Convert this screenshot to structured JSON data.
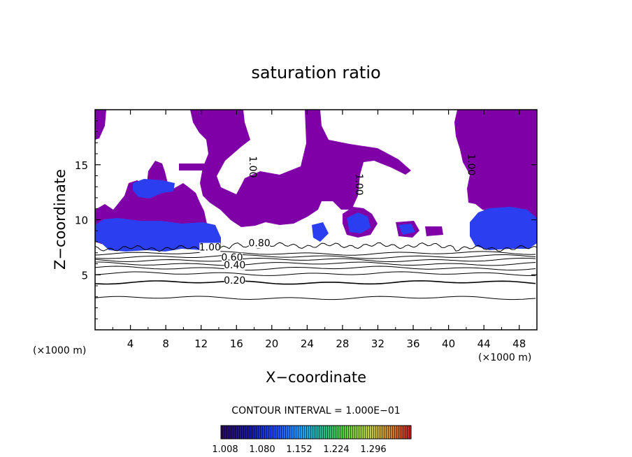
{
  "chart_data": {
    "type": "heatmap",
    "title": "saturation ratio",
    "xlabel": "X−coordinate",
    "ylabel": "Z−coordinate",
    "x_unit_left": "(×1000 m)",
    "x_unit_right": "(×1000 m)",
    "xlim": [
      0,
      50
    ],
    "ylim": [
      0,
      20
    ],
    "x_ticks": [
      4,
      8,
      12,
      16,
      20,
      24,
      28,
      32,
      36,
      40,
      44,
      48
    ],
    "y_ticks": [
      5,
      10,
      15
    ],
    "contour_interval_text": "CONTOUR INTERVAL = 1.000E−01",
    "contour_labels": [
      {
        "text": "1.00",
        "x": 17.5,
        "z": 14.8,
        "rotate": true
      },
      {
        "text": "1.00",
        "x": 29.5,
        "z": 13.2,
        "rotate": true
      },
      {
        "text": "1.00",
        "x": 42.2,
        "z": 15.0,
        "rotate": true
      },
      {
        "text": "1.00",
        "x": 13.0,
        "z": 7.2,
        "rotate": false
      },
      {
        "text": "0.80",
        "x": 18.6,
        "z": 7.6,
        "rotate": false
      },
      {
        "text": "0.60",
        "x": 15.5,
        "z": 6.3,
        "rotate": false
      },
      {
        "text": "0.40",
        "x": 15.8,
        "z": 5.6,
        "rotate": false
      },
      {
        "text": "0.20",
        "x": 15.8,
        "z": 4.2,
        "rotate": false
      }
    ],
    "contour_levels": [
      {
        "level": 0.2,
        "z": 4.3
      },
      {
        "level": 0.3,
        "z": 5.1
      },
      {
        "level": 0.4,
        "z": 5.6
      },
      {
        "level": 0.5,
        "z": 6.0
      },
      {
        "level": 0.6,
        "z": 6.35
      },
      {
        "level": 0.7,
        "z": 6.65
      },
      {
        "level": 0.8,
        "z": 6.95
      },
      {
        "level": 0.1,
        "z": 2.9
      }
    ],
    "colorbar": {
      "ticks": [
        "1.008",
        "1.080",
        "1.152",
        "1.224",
        "1.296"
      ],
      "colors": [
        "#2a0a5e",
        "#1a1aa0",
        "#2050ff",
        "#20a0ff",
        "#20c080",
        "#60d040",
        "#c0d040",
        "#d08030",
        "#c02020"
      ]
    },
    "colors": {
      "saturated_fill": "#8000a8",
      "supersaturated_fill": "#2c3ff0"
    }
  }
}
